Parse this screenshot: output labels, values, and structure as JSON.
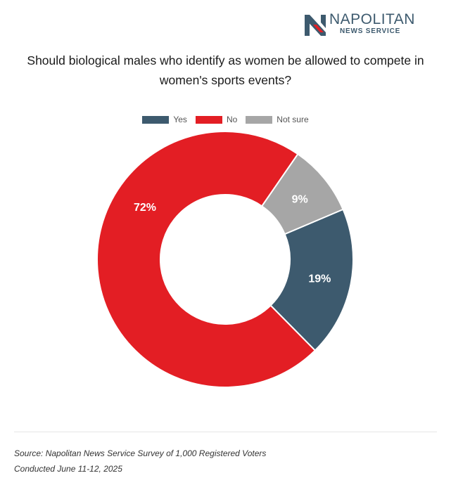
{
  "logo": {
    "name": "NAPOLITAN",
    "subtitle": "NEWS SERVICE",
    "mark_letter": "N"
  },
  "chart_data": {
    "type": "pie",
    "variant": "donut",
    "title": "Should biological males who identify as women be allowed to compete in women's sports events?",
    "categories": [
      "Yes",
      "No",
      "Not sure"
    ],
    "values": [
      19,
      72,
      9
    ],
    "labels": [
      "19%",
      "72%",
      "9%"
    ],
    "colors": [
      "#3d5a6e",
      "#e31e24",
      "#a6a6a6"
    ],
    "legend_position": "top"
  },
  "footer": {
    "source": "Source: Napolitan News Service Survey of 1,000 Registered Voters",
    "conducted": "Conducted June 11-12, 2025"
  },
  "colors": {
    "brand": "#3d5a6e",
    "accent": "#e31e24"
  }
}
